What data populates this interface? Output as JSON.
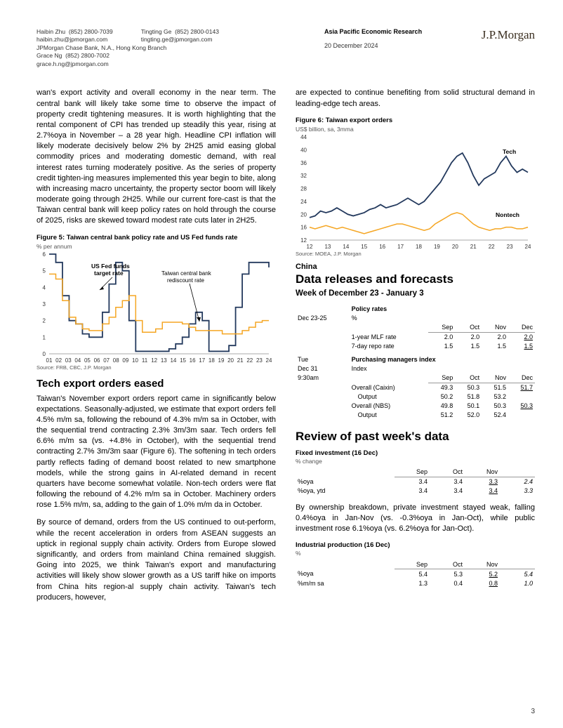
{
  "header": {
    "authors": [
      {
        "name": "Haibin Zhu",
        "phone": "(852) 2800-7039",
        "email": "haibin.zhu@jpmorgan.com"
      },
      {
        "name": "Tingting Ge",
        "phone": "(852) 2800-0143",
        "email": "tingting.ge@jpmorgan.com"
      },
      {
        "name": "Grace Ng",
        "phone": "(852) 2800-7002",
        "email": "grace.h.ng@jpmorgan.com"
      }
    ],
    "entity": "JPMorgan Chase Bank, N.A., Hong Kong Branch",
    "department": "Asia Pacific Economic Research",
    "date": "20 December 2024",
    "logo": "J.P.Morgan"
  },
  "left": {
    "para1": "wan's export activity and overall economy in the near term. The central bank will likely take some time to observe the impact of property credit tightening measures. It is worth highlighting that the rental component of CPI has trended up steadily this year, rising at 2.7%oya in November – a 28 year high. Headline CPI inflation will likely moderate decisively below 2% by 2H25 amid easing global commodity prices and moderating domestic demand, with real interest rates turning moderately positive. As the series of property credit tighten-ing measures implemented this year begin to bite, along with increasing macro uncertainty, the property sector boom will likely moderate going through 2H25. While our current fore-cast is that the Taiwan central bank will keep policy rates on hold through the course of 2025, risks are skewed toward modest rate cuts later in 2H25.",
    "fig5": {
      "title": "Figure 5: Taiwan central bank policy rate and US Fed funds rate",
      "ylabel": "% per annum",
      "source": "Source: FRB, CBC, J.P. Morgan",
      "annot1": "US Fed funds\ntarget rate",
      "annot2": "Taiwan central bank\nrediscount rate",
      "ylim": [
        0,
        6
      ],
      "ytick_step": 1,
      "x_labels": [
        "01",
        "02",
        "03",
        "04",
        "05",
        "06",
        "07",
        "08",
        "09",
        "10",
        "11",
        "12",
        "13",
        "14",
        "15",
        "16",
        "17",
        "18",
        "19",
        "20",
        "21",
        "22",
        "23",
        "24"
      ],
      "colors": {
        "fed": "#23395d",
        "cbc": "#f5a623",
        "axis": "#555555"
      },
      "fed": [
        6.0,
        5.5,
        3.5,
        2.0,
        1.8,
        1.2,
        1.0,
        1.0,
        2.5,
        4.2,
        5.5,
        5.0,
        2.0,
        0.15,
        0.15,
        0.15,
        0.15,
        0.15,
        0.3,
        0.6,
        1.0,
        1.8,
        2.5,
        2.0,
        0.15,
        0.15,
        0.15,
        0.5,
        2.8,
        4.8,
        5.5,
        5.5,
        5.5,
        5.2
      ],
      "cbc": [
        4.8,
        4.5,
        3.2,
        2.2,
        1.8,
        1.5,
        1.4,
        1.4,
        1.8,
        2.2,
        2.8,
        3.2,
        3.5,
        2.0,
        1.3,
        1.3,
        1.5,
        1.9,
        1.9,
        1.9,
        1.8,
        1.6,
        1.4,
        1.4,
        1.4,
        1.4,
        1.2,
        1.2,
        1.2,
        1.4,
        1.6,
        1.9,
        2.0,
        2.0
      ]
    },
    "section1": "Tech export orders eased",
    "para2": "Taiwan's November export orders report came in significantly below expectations. Seasonally-adjusted, we estimate that export orders fell 4.5% m/m sa, following the rebound of 4.3% m/m sa in October, with the sequential trend contracting 2.3% 3m/3m saar. Tech orders fell 6.6% m/m sa (vs. +4.8% in October), with the sequential trend contracting 2.7% 3m/3m saar (Figure 6). The softening in tech orders partly reflects fading of demand boost related to new smartphone models, while the strong gains in AI-related demand in recent quarters have become somewhat volatile. Non-tech orders were flat following the rebound of 4.2% m/m sa in October. Machinery orders rose 1.5% m/m, sa, adding to the gain of 1.0% m/m da in October.",
    "para3": "By source of demand, orders from the US continued to out-perform, while the recent acceleration in orders from ASEAN suggests an uptick in regional supply chain activity. Orders from Europe slowed significantly, and orders from mainland China remained sluggish. Going into 2025, we think Taiwan's export and manufacturing activities will likely show slower growth as a US tariff hike on imports from China hits region-al supply chain activity. Taiwan's tech producers, however,"
  },
  "right": {
    "para_top": "are expected to continue benefiting from solid structural demand in leading-edge tech areas.",
    "fig6": {
      "title": "Figure 6: Taiwan export orders",
      "ylabel": "US$ billion, sa, 3mma",
      "source": "Source: MOEA, J.P. Morgan",
      "annot_tech": "Tech",
      "annot_nontech": "Nontech",
      "ylim": [
        12,
        44
      ],
      "ytick_step": 4,
      "x_labels": [
        "12",
        "13",
        "14",
        "15",
        "16",
        "17",
        "18",
        "19",
        "20",
        "21",
        "22",
        "23",
        "24"
      ],
      "colors": {
        "tech": "#23395d",
        "nontech": "#f5a623",
        "axis": "#555555"
      },
      "tech": [
        19,
        19.5,
        21,
        20.5,
        21,
        22,
        21,
        20,
        19.5,
        20,
        20.5,
        21.5,
        22,
        23,
        22,
        22.5,
        23,
        24,
        25,
        24,
        23,
        24,
        26,
        28,
        30,
        33,
        36,
        38,
        39,
        36,
        32,
        29,
        31,
        32,
        33,
        36,
        38,
        35,
        33,
        34,
        33
      ],
      "nontech": [
        16,
        15.5,
        16,
        16.5,
        16,
        15.5,
        16,
        15.5,
        15,
        14.5,
        14,
        14.5,
        15,
        15.5,
        16,
        16.5,
        17,
        17,
        16.5,
        16,
        15.5,
        15,
        15.5,
        17,
        18,
        19,
        20,
        20.5,
        20,
        18.5,
        17,
        16,
        15.5,
        15,
        15.5,
        15.5,
        16,
        16,
        15.5,
        15.5,
        16
      ]
    },
    "country": "China",
    "h2": "Data releases and forecasts",
    "week": "Week of December 23 - January 3",
    "tbl1": {
      "block1_title": "Policy rates",
      "block1_date": "Dec 23-25",
      "block1_unit": "%",
      "cols1": [
        "Sep",
        "Oct",
        "Nov",
        "Dec"
      ],
      "rows1": [
        {
          "label": "1-year MLF rate",
          "vals": [
            "2.0",
            "2.0",
            "2.0",
            "2.0"
          ],
          "und_idx": 3
        },
        {
          "label": "7-day repo rate",
          "vals": [
            "1.5",
            "1.5",
            "1.5",
            "1.5"
          ],
          "und_idx": 3
        }
      ],
      "block2_day": "Tue",
      "block2_title": "Purchasing managers index",
      "block2_date": "Dec 31",
      "block2_time": "9:30am",
      "block2_unit": "Index",
      "cols2": [
        "Sep",
        "Oct",
        "Nov",
        "Dec"
      ],
      "rows2": [
        {
          "label": "Overall (Caixin)",
          "vals": [
            "49.3",
            "50.3",
            "51.5",
            "51.7"
          ],
          "und_idx": 3
        },
        {
          "label": "Output",
          "vals": [
            "50.2",
            "51.8",
            "53.2",
            ""
          ],
          "indent": true
        },
        {
          "label": "Overall (NBS)",
          "vals": [
            "49.8",
            "50.1",
            "50.3",
            "50.3"
          ],
          "und_idx": 3
        },
        {
          "label": "Output",
          "vals": [
            "51.2",
            "52.0",
            "52.4",
            ""
          ],
          "indent": true
        }
      ]
    },
    "h3": "Review of past week's data",
    "tbl_fi": {
      "title": "Fixed investment (16 Dec)",
      "unit": "% change",
      "cols": [
        "Sep",
        "Oct",
        "Nov",
        ""
      ],
      "rows": [
        {
          "label": "%oya",
          "vals": [
            "3.4",
            "3.4",
            "3.3",
            "2.4"
          ],
          "und_idx": 2,
          "it_idx": 3
        },
        {
          "label": "%oya, ytd",
          "vals": [
            "3.4",
            "3.4",
            "3.4",
            "3.3"
          ],
          "und_idx": 2,
          "it_idx": 3
        }
      ]
    },
    "para_mid": "By ownership breakdown, private investment stayed weak, falling 0.4%oya in Jan-Nov (vs. -0.3%oya in Jan-Oct), while public investment rose 6.1%oya (vs. 6.2%oya for Jan-Oct).",
    "tbl_ip": {
      "title": "Industrial production (16 Dec)",
      "unit": "%",
      "cols": [
        "Sep",
        "Oct",
        "Nov",
        ""
      ],
      "rows": [
        {
          "label": "%oya",
          "vals": [
            "5.4",
            "5.3",
            "5.2",
            "5.4"
          ],
          "und_idx": 2,
          "it_idx": 3
        },
        {
          "label": "%m/m sa",
          "vals": [
            "1.3",
            "0.4",
            "0.8",
            "1.0"
          ],
          "und_idx": 2,
          "it_idx": 3
        }
      ]
    }
  },
  "page": "3"
}
